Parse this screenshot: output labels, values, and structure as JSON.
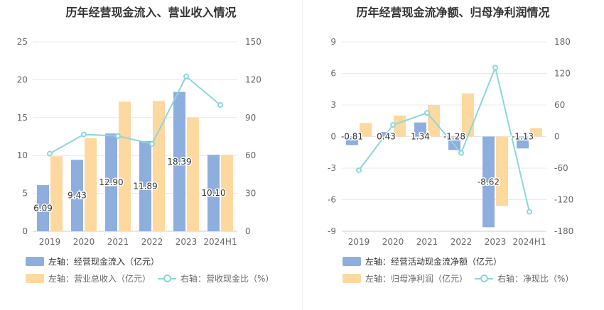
{
  "colors": {
    "bar_primary": "#8eaedd",
    "bar_secondary": "#fdd9a0",
    "line": "#8ad6dc",
    "axis_text": "#666666",
    "grid": "#e8e8e8",
    "title": "#333333"
  },
  "chart_data": [
    {
      "type": "bar",
      "title": "历年经营现金流入、营业收入情况",
      "categories": [
        "2019",
        "2020",
        "2021",
        "2022",
        "2023",
        "2024H1"
      ],
      "left_axis": {
        "ticks": [
          "0",
          "5",
          "10",
          "15",
          "20",
          "25"
        ],
        "ylim": [
          0,
          25
        ]
      },
      "right_axis": {
        "ticks": [
          "0",
          "30",
          "60",
          "90",
          "120",
          "150"
        ],
        "ylim": [
          0,
          150
        ]
      },
      "series": [
        {
          "name": "左轴：经营现金流入（亿元）",
          "axis": "left",
          "kind": "bar",
          "values": [
            6.09,
            9.43,
            12.9,
            11.89,
            18.39,
            10.1
          ],
          "labels": [
            "6.09",
            "9.43",
            "12.90",
            "11.89",
            "18.39",
            "10.10"
          ]
        },
        {
          "name": "左轴：营业总收入（亿元）",
          "axis": "left",
          "kind": "bar",
          "values": [
            9.9,
            12.3,
            17.1,
            17.2,
            15.0,
            10.1
          ]
        },
        {
          "name": "右轴：营收现金比（%）",
          "axis": "right",
          "kind": "line",
          "values": [
            61.5,
            76.7,
            75.4,
            69.2,
            122.6,
            100.0
          ]
        }
      ],
      "legend": [
        {
          "label": "左轴：经营现金流入（亿元）",
          "icon": "bar-primary"
        },
        {
          "label": "左轴：营业总收入（亿元）",
          "icon": "bar-secondary"
        },
        {
          "label": "右轴：营收现金比（%）",
          "icon": "line"
        }
      ],
      "grid": true
    },
    {
      "type": "bar",
      "title": "历年经营现金流净额、归母净利润情况",
      "categories": [
        "2019",
        "2020",
        "2021",
        "2022",
        "2023",
        "2024H1"
      ],
      "left_axis": {
        "ticks": [
          "-9",
          "-6",
          "-3",
          "0",
          "3",
          "6",
          "9"
        ],
        "ylim": [
          -9,
          9
        ]
      },
      "right_axis": {
        "ticks": [
          "-180",
          "-120",
          "-60",
          "0",
          "60",
          "120",
          "180"
        ],
        "ylim": [
          -180,
          180
        ]
      },
      "series": [
        {
          "name": "左轴：经营活动现金流净额（亿元）",
          "axis": "left",
          "kind": "bar",
          "values": [
            -0.81,
            0.43,
            1.34,
            -1.28,
            -8.62,
            -1.13
          ],
          "labels": [
            "-0.81",
            "0.43",
            "1.34",
            "-1.28",
            "-8.62",
            "-1.13"
          ]
        },
        {
          "name": "左轴：归母净利润（亿元）",
          "axis": "left",
          "kind": "bar",
          "values": [
            1.3,
            2.0,
            3.0,
            4.1,
            -6.6,
            0.8
          ]
        },
        {
          "name": "右轴：净现比（%）",
          "axis": "right",
          "kind": "line",
          "values": [
            -64,
            22,
            45,
            -31,
            131,
            -143
          ]
        }
      ],
      "legend": [
        {
          "label": "左轴：经营活动现金流净额（亿元）",
          "icon": "bar-primary"
        },
        {
          "label": "左轴：归母净利润（亿元）",
          "icon": "bar-secondary"
        },
        {
          "label": "右轴：净现比（%）",
          "icon": "line"
        }
      ],
      "grid": true
    }
  ]
}
